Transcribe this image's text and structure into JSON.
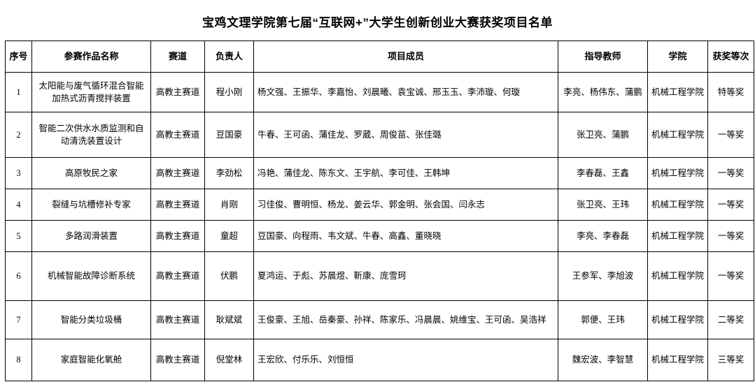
{
  "title": "宝鸡文理学院第七届“互联网+”大学生创新创业大赛获奖项目名单",
  "colors": {
    "background": "#ffffff",
    "border": "#000000",
    "text": "#000000"
  },
  "table": {
    "columns": [
      {
        "key": "index",
        "label": "序号"
      },
      {
        "key": "project",
        "label": "参赛作品名称"
      },
      {
        "key": "track",
        "label": "赛道"
      },
      {
        "key": "leader",
        "label": "负责人"
      },
      {
        "key": "members",
        "label": "项目成员"
      },
      {
        "key": "advisors",
        "label": "指导教师"
      },
      {
        "key": "college",
        "label": "学院"
      },
      {
        "key": "award",
        "label": "获奖等次"
      }
    ],
    "rows": [
      {
        "index": "1",
        "project": "太阳能与废气循环混合智能加热式沥青搅拌装置",
        "track": "高教主赛道",
        "leader": "程小刚",
        "members": "杨文强、王振华、李嘉怡、刘晨曦、袁宝诚、邢玉玉、李沛璇、何璇",
        "advisors": "李亮、杨伟东、蒲鹏",
        "college": "机械工程学院",
        "award": "特等奖"
      },
      {
        "index": "2",
        "project": "智能二次供水水质监测和自动清洗装置设计",
        "track": "高教主赛道",
        "leader": "豆国豪",
        "members": "牛春、王可函、蒲佳龙、罗葳、周俊苗、张佳璐",
        "advisors": "张卫亮、蒲鹏",
        "college": "机械工程学院",
        "award": "一等奖"
      },
      {
        "index": "3",
        "project": "高原牧民之家",
        "track": "高教主赛道",
        "leader": "李劲松",
        "members": "冯艳、蒲佳龙、陈东文、王宇航、李可佳、王韩坤",
        "advisors": "李春磊、王鑫",
        "college": "机械工程学院",
        "award": "一等奖"
      },
      {
        "index": "4",
        "project": "裂缝与坑槽修补专家",
        "track": "高教主赛道",
        "leader": "肖刚",
        "members": "习佳俊、曹明恒、杨龙、姜云华、郭金明、张会国、闫永志",
        "advisors": "张卫亮、王玮",
        "college": "机械工程学院",
        "award": "一等奖"
      },
      {
        "index": "5",
        "project": "多路润滑装置",
        "track": "高教主赛道",
        "leader": "童超",
        "members": "豆国豪、向程雨、韦文斌、牛春、高鑫、董晓晓",
        "advisors": "李亮、李春磊",
        "college": "机械工程学院",
        "award": "一等奖"
      },
      {
        "index": "6",
        "project": "机械智能故障诊断系统",
        "track": "高教主赛道",
        "leader": "伏鹏",
        "members": "夏鸿运、于彪、苏晨煜、靳康、庞雪珂",
        "advisors": "王参军、李旭波",
        "college": "机械工程学院",
        "award": "一等奖"
      },
      {
        "index": "7",
        "project": "智能分类垃圾桶",
        "track": "高教主赛道",
        "leader": "耿斌斌",
        "members": "王俊豪、王旭、岳秦豪、孙祥、陈家乐、冯晨晨、姚维宝、王可函、吴浩祥",
        "advisors": "郭便、王玮",
        "college": "机械工程学院",
        "award": "二等奖"
      },
      {
        "index": "8",
        "project": "家庭智能化氧舱",
        "track": "高教主赛道",
        "leader": "倪堂林",
        "members": "王宏欣、付乐乐、刘恒恒",
        "advisors": "魏宏波、李智慧",
        "college": "机械工程学院",
        "award": "三等奖"
      }
    ]
  }
}
